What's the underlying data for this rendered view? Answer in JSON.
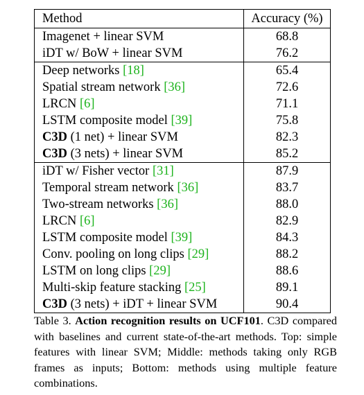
{
  "table": {
    "headers": {
      "method": "Method",
      "accuracy": "Accuracy (%)"
    },
    "groups": [
      {
        "rows": [
          {
            "method": "Imagenet + linear SVM",
            "bold_prefix": "",
            "cite": "",
            "suffix": "",
            "accuracy": "68.8",
            "accuracy_bold": false
          },
          {
            "method": "iDT w/ BoW + linear SVM",
            "bold_prefix": "",
            "cite": "",
            "suffix": "",
            "accuracy": "76.2",
            "accuracy_bold": false
          }
        ]
      },
      {
        "rows": [
          {
            "method": "Deep networks ",
            "bold_prefix": "",
            "cite": "[18]",
            "suffix": "",
            "accuracy": "65.4",
            "accuracy_bold": false
          },
          {
            "method": "Spatial stream network ",
            "bold_prefix": "",
            "cite": "[36]",
            "suffix": "",
            "accuracy": "72.6",
            "accuracy_bold": false
          },
          {
            "method": "LRCN ",
            "bold_prefix": "",
            "cite": "[6]",
            "suffix": "",
            "accuracy": "71.1",
            "accuracy_bold": false
          },
          {
            "method": "LSTM composite model ",
            "bold_prefix": "",
            "cite": "[39]",
            "suffix": "",
            "accuracy": "75.8",
            "accuracy_bold": false
          },
          {
            "method": "(1 net) + linear SVM",
            "bold_prefix": "C3D ",
            "cite": "",
            "suffix": "",
            "accuracy": "82.3",
            "accuracy_bold": false
          },
          {
            "method": "(3 nets) + linear SVM",
            "bold_prefix": "C3D ",
            "cite": "",
            "suffix": "",
            "accuracy": "85.2",
            "accuracy_bold": true
          }
        ]
      },
      {
        "rows": [
          {
            "method": "iDT w/ Fisher vector ",
            "bold_prefix": "",
            "cite": "[31]",
            "suffix": "",
            "accuracy": "87.9",
            "accuracy_bold": false
          },
          {
            "method": "Temporal stream network ",
            "bold_prefix": "",
            "cite": "[36]",
            "suffix": "",
            "accuracy": "83.7",
            "accuracy_bold": false
          },
          {
            "method": "Two-stream networks ",
            "bold_prefix": "",
            "cite": "[36]",
            "suffix": "",
            "accuracy": "88.0",
            "accuracy_bold": false
          },
          {
            "method": "LRCN ",
            "bold_prefix": "",
            "cite": "[6]",
            "suffix": "",
            "accuracy": "82.9",
            "accuracy_bold": false
          },
          {
            "method": "LSTM composite model ",
            "bold_prefix": "",
            "cite": "[39]",
            "suffix": "",
            "accuracy": "84.3",
            "accuracy_bold": false
          },
          {
            "method": "Conv. pooling on long clips ",
            "bold_prefix": "",
            "cite": "[29]",
            "suffix": "",
            "accuracy": "88.2",
            "accuracy_bold": false
          },
          {
            "method": "LSTM on long clips ",
            "bold_prefix": "",
            "cite": "[29]",
            "suffix": "",
            "accuracy": "88.6",
            "accuracy_bold": false
          },
          {
            "method": "Multi-skip feature stacking ",
            "bold_prefix": "",
            "cite": "[25]",
            "suffix": "",
            "accuracy": "89.1",
            "accuracy_bold": false
          },
          {
            "method": "(3 nets) + iDT + linear SVM",
            "bold_prefix": "C3D ",
            "cite": "",
            "suffix": "",
            "accuracy": "90.4",
            "accuracy_bold": true
          }
        ]
      }
    ]
  },
  "caption": {
    "label": "Table 3. ",
    "title": "Action recognition results on UCF101",
    "body": ". C3D compared with baselines and current state-of-the-art methods. Top: simple features with linear SVM; Middle: methods taking only RGB frames as inputs; Bottom: methods using multiple feature combinations."
  },
  "colors": {
    "citation": "#1db31d",
    "text": "#000000"
  }
}
